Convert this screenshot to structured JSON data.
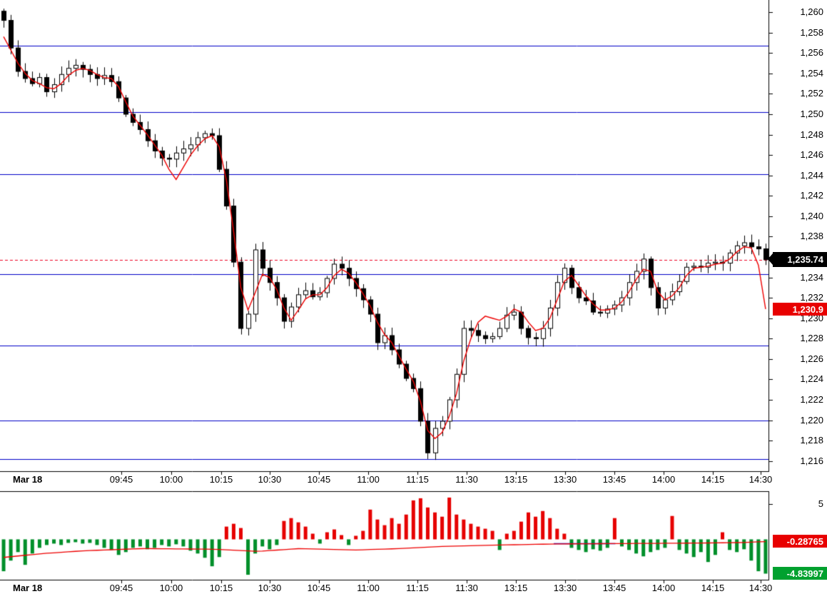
{
  "colors": {
    "bg": "#ffffff",
    "axis_text": "#000000",
    "up_candle_fill": "#ffffff",
    "down_candle_fill": "#000000",
    "candle_outline": "#000000",
    "red_line": "#ee0000",
    "level_line": "#0000c8",
    "dashed_line": "#ee0022",
    "pos_bar": "#e60000",
    "neg_bar": "#008f2a",
    "blue_segment": "#0000cc",
    "tag_black": "#000000",
    "tag_red": "#e80000",
    "tag_green": "#00a12f"
  },
  "chart_data": {
    "type": "candlestick",
    "title": "",
    "x_axis": {
      "date_label": "Mar 18",
      "ticks": [
        {
          "label": "09:45",
          "xf": 0.1577
        },
        {
          "label": "10:00",
          "xf": 0.2226
        },
        {
          "label": "10:15",
          "xf": 0.2876
        },
        {
          "label": "10:30",
          "xf": 0.3506
        },
        {
          "label": "10:45",
          "xf": 0.4146
        },
        {
          "label": "11:00",
          "xf": 0.4787
        },
        {
          "label": "11:15",
          "xf": 0.5427
        },
        {
          "label": "11:30",
          "xf": 0.6067
        },
        {
          "label": "13:15",
          "xf": 0.6707
        },
        {
          "label": "13:30",
          "xf": 0.7347
        },
        {
          "label": "13:45",
          "xf": 0.7987
        },
        {
          "label": "14:00",
          "xf": 0.8627
        },
        {
          "label": "14:15",
          "xf": 0.9267
        },
        {
          "label": "14:30",
          "xf": 0.9889
        }
      ]
    },
    "panels": [
      {
        "name": "price",
        "y_range": [
          1215.0,
          1261.2
        ],
        "y_tick_labels": [
          "1,260",
          "1,258",
          "1,256",
          "1,254",
          "1,252",
          "1,250",
          "1,248",
          "1,246",
          "1,244",
          "1,242",
          "1,240",
          "1,238",
          "1,236",
          "1,234",
          "1,232",
          "1,230",
          "1,228",
          "1,226",
          "1,224",
          "1,222",
          "1,220",
          "1,218",
          "1,216"
        ],
        "levels": [
          1256.7,
          1250.2,
          1244.1,
          1234.3,
          1227.3,
          1220.0,
          1216.2
        ],
        "last_price": 1235.74,
        "last_price_label": "1,235.74",
        "ma_last": 1230.9,
        "ma_label": "1,230.9",
        "closes": [
          1259.2,
          1256.5,
          1254.2,
          1253.5,
          1253.0,
          1253.6,
          1252.2,
          1252.9,
          1253.9,
          1254.5,
          1254.8,
          1254.4,
          1253.9,
          1253.5,
          1253.8,
          1253.2,
          1251.6,
          1250.0,
          1249.2,
          1248.5,
          1247.4,
          1246.4,
          1245.7,
          1245.6,
          1246.2,
          1246.6,
          1247.0,
          1247.7,
          1248.1,
          1247.9,
          1244.6,
          1241.0,
          1235.5,
          1229.0,
          1230.4,
          1236.7,
          1234.9,
          1233.5,
          1232.0,
          1229.7,
          1231.1,
          1232.3,
          1232.7,
          1232.1,
          1232.5,
          1233.9,
          1235.3,
          1234.9,
          1233.9,
          1232.9,
          1231.8,
          1230.4,
          1227.6,
          1228.3,
          1226.9,
          1225.5,
          1224.1,
          1223.1,
          1219.9,
          1216.8,
          1219.2,
          1219.9,
          1222.0,
          1224.5,
          1229.0,
          1228.8,
          1228.3,
          1228.0,
          1228.2,
          1229.0,
          1230.3,
          1230.6,
          1229.0,
          1228.1,
          1228.0,
          1229.0,
          1231.0,
          1233.5,
          1234.9,
          1233.0,
          1232.0,
          1231.7,
          1230.6,
          1230.5,
          1230.9,
          1231.3,
          1232.0,
          1233.5,
          1234.6,
          1235.8,
          1233.0,
          1231.0,
          1231.8,
          1232.6,
          1233.6,
          1235.0,
          1235.1,
          1235.0,
          1235.4,
          1235.5,
          1235.4,
          1236.4,
          1237.1,
          1237.4,
          1237.0,
          1236.8,
          1235.74
        ],
        "ma": [
          1257.6,
          1256.3,
          1255.0,
          1254.0,
          1253.3,
          1253.0,
          1252.6,
          1252.5,
          1253.0,
          1253.8,
          1254.3,
          1254.5,
          1254.3,
          1253.9,
          1253.6,
          1253.5,
          1252.7,
          1251.2,
          1249.8,
          1248.9,
          1248.0,
          1247.0,
          1246.0,
          1244.6,
          1243.6,
          1244.8,
          1246.0,
          1246.9,
          1247.6,
          1247.9,
          1246.8,
          1243.5,
          1238.5,
          1233.0,
          1230.8,
          1232.5,
          1234.3,
          1234.0,
          1232.8,
          1231.0,
          1229.8,
          1230.8,
          1231.9,
          1232.3,
          1232.3,
          1233.0,
          1234.2,
          1234.8,
          1234.4,
          1233.5,
          1232.4,
          1231.2,
          1229.6,
          1228.4,
          1227.6,
          1226.3,
          1225.0,
          1223.8,
          1221.8,
          1219.0,
          1218.2,
          1218.8,
          1220.4,
          1222.6,
          1225.8,
          1228.0,
          1229.6,
          1230.2,
          1230.0,
          1229.8,
          1230.2,
          1230.9,
          1230.6,
          1229.6,
          1228.8,
          1229.0,
          1230.0,
          1231.8,
          1233.6,
          1234.2,
          1233.2,
          1232.2,
          1231.4,
          1230.8,
          1230.8,
          1231.0,
          1231.6,
          1232.6,
          1233.8,
          1234.8,
          1234.6,
          1232.6,
          1231.8,
          1232.2,
          1233.0,
          1234.2,
          1234.9,
          1235.0,
          1235.1,
          1235.3,
          1235.4,
          1235.8,
          1236.5,
          1237.0,
          1236.9,
          1235.2,
          1230.9
        ]
      },
      {
        "name": "indicator",
        "y_range": [
          -5.7,
          6.8
        ],
        "scale_value": 5,
        "scale_label": "5",
        "line_last": -0.28765,
        "line_last_label": "-0.28765",
        "hist_last": -4.83997,
        "hist_last_label": "-4.83997",
        "bars": [
          -4.5,
          -3.0,
          -1.8,
          -3.6,
          -2.0,
          -1.2,
          -0.8,
          -0.6,
          -0.8,
          -0.5,
          -0.4,
          -0.6,
          -0.5,
          -0.8,
          -1.2,
          -1.5,
          -2.2,
          -1.8,
          -1.2,
          -1.0,
          -1.4,
          -1.2,
          -0.8,
          -1.0,
          -0.7,
          -1.0,
          -1.6,
          -2.0,
          -2.6,
          -3.8,
          -2.5,
          1.8,
          2.2,
          1.6,
          -5.0,
          -2.0,
          -1.0,
          -1.4,
          -0.8,
          2.6,
          3.0,
          2.4,
          1.8,
          0.8,
          -0.6,
          1.0,
          1.4,
          0.6,
          -0.8,
          0.5,
          1.2,
          4.2,
          2.8,
          2.0,
          3.0,
          2.2,
          3.5,
          5.5,
          5.8,
          4.5,
          3.8,
          3.2,
          5.9,
          3.5,
          2.8,
          2.2,
          1.8,
          1.5,
          1.2,
          -1.5,
          0.8,
          1.2,
          2.5,
          3.8,
          3.2,
          4.0,
          3.0,
          1.5,
          0.8,
          -1.2,
          -1.5,
          -1.8,
          -1.4,
          -1.6,
          -1.2,
          3.0,
          -1.0,
          -1.5,
          -2.0,
          -2.4,
          -1.8,
          -1.5,
          -1.2,
          3.3,
          -1.5,
          -2.0,
          -2.5,
          -1.8,
          -3.2,
          -2.2,
          1.0,
          -1.5,
          -1.8,
          -1.4,
          -3.0,
          -4.5,
          -4.83997
        ],
        "line_anchors": [
          [
            0.0,
            -2.6
          ],
          [
            0.056,
            -2.0
          ],
          [
            0.111,
            -1.6
          ],
          [
            0.186,
            -1.3
          ],
          [
            0.278,
            -1.4
          ],
          [
            0.334,
            -1.7
          ],
          [
            0.39,
            -1.3
          ],
          [
            0.464,
            -1.5
          ],
          [
            0.52,
            -1.3
          ],
          [
            0.575,
            -1.0
          ],
          [
            0.649,
            -0.8
          ],
          [
            0.723,
            -0.65
          ],
          [
            0.798,
            -0.6
          ],
          [
            0.872,
            -0.55
          ],
          [
            0.928,
            -0.5
          ],
          [
            0.965,
            -0.45
          ],
          [
            1.0,
            -0.28765
          ]
        ],
        "blue_segment": {
          "x1": 0.72,
          "x2": 0.8,
          "value": -0.6
        }
      }
    ]
  }
}
